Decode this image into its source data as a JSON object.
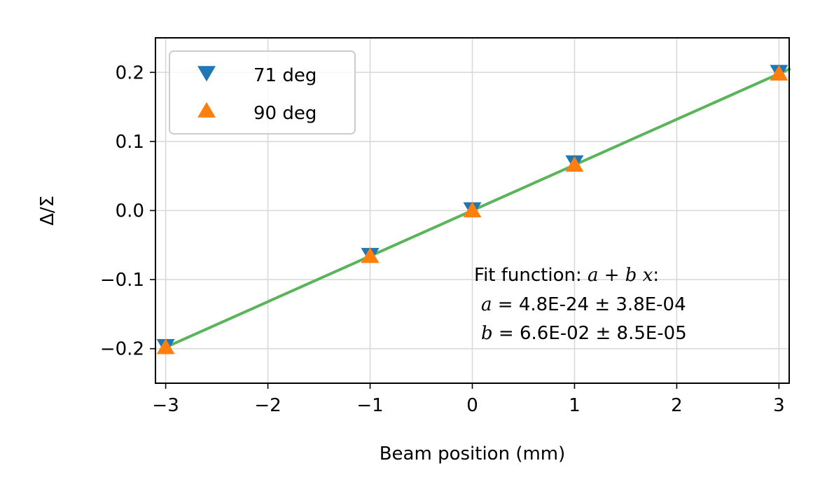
{
  "chart_data": {
    "type": "scatter",
    "xlabel": "Beam position (mm)",
    "ylabel": "Δ/Σ",
    "xlim": [
      -3.1,
      3.1
    ],
    "ylim": [
      -0.25,
      0.25
    ],
    "xticks": [
      -3,
      -2,
      -1,
      0,
      1,
      2,
      3
    ],
    "xtick_labels": [
      "−3",
      "−2",
      "−1",
      "0",
      "1",
      "2",
      "3"
    ],
    "yticks": [
      -0.2,
      -0.1,
      0.0,
      0.1,
      0.2
    ],
    "ytick_labels": [
      "−0.2",
      "−0.1",
      "0.0",
      "0.1",
      "0.2"
    ],
    "grid": true,
    "legend_position": "top-left",
    "series": [
      {
        "name": "71 deg",
        "marker": "triangle-down",
        "color": "#1f77b4",
        "x": [
          -3,
          -1,
          0,
          1,
          3
        ],
        "y": [
          -0.196,
          -0.064,
          0.002,
          0.07,
          0.201
        ]
      },
      {
        "name": "90 deg",
        "marker": "triangle-up",
        "color": "#ff7f0e",
        "x": [
          -3,
          -1,
          0,
          1,
          3
        ],
        "y": [
          -0.198,
          -0.066,
          0.0,
          0.066,
          0.198
        ]
      }
    ],
    "fit": {
      "color": "#5ab45a",
      "intercept": 4.8e-24,
      "slope": 0.066,
      "label_title": "Fit function: ",
      "label_formula": "a + b x",
      "label_formula_suffix": ":",
      "line_a": "a = 4.8E-24 ± 3.8E-04",
      "line_b": "b = 6.6E-02 ± 8.5E-05",
      "a_symbol": "a",
      "a_value": " = 4.8E-24 ± 3.8E-04",
      "b_symbol": "b",
      "b_value": " = 6.6E-02 ± 8.5E-05"
    }
  }
}
